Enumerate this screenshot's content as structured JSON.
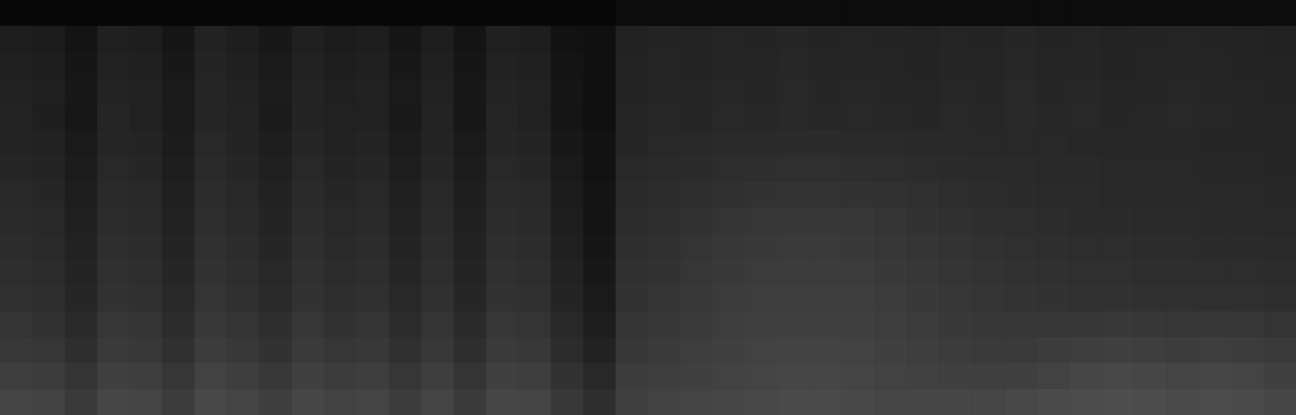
{
  "chart_data": {
    "type": "heatmap",
    "tick_labels": false,
    "cells": [
      [
        8,
        8,
        8,
        8,
        8,
        8,
        8,
        8,
        8,
        8,
        8,
        8,
        8,
        8,
        8,
        8,
        8,
        8,
        8,
        12,
        12,
        12,
        12,
        12,
        12,
        12,
        12,
        12,
        12,
        12,
        12,
        12,
        12,
        12,
        12,
        12,
        12,
        12,
        12,
        12
      ],
      [
        30,
        28,
        20,
        32,
        30,
        22,
        34,
        30,
        24,
        32,
        28,
        30,
        22,
        30,
        20,
        32,
        30,
        18,
        16,
        34,
        36,
        35,
        37,
        36,
        38,
        36,
        37,
        36,
        35,
        37,
        36,
        38,
        36,
        37,
        35,
        36,
        37,
        36,
        35,
        34
      ],
      [
        32,
        30,
        22,
        34,
        32,
        24,
        36,
        32,
        26,
        34,
        30,
        32,
        24,
        32,
        22,
        34,
        32,
        20,
        16,
        35,
        37,
        36,
        38,
        37,
        39,
        37,
        38,
        37,
        36,
        38,
        37,
        39,
        37,
        38,
        36,
        37,
        38,
        37,
        36,
        35
      ],
      [
        34,
        32,
        24,
        36,
        34,
        26,
        38,
        34,
        28,
        36,
        32,
        34,
        26,
        34,
        24,
        36,
        34,
        22,
        16,
        36,
        38,
        37,
        39,
        38,
        40,
        38,
        39,
        38,
        37,
        39,
        38,
        40,
        38,
        39,
        37,
        38,
        39,
        38,
        37,
        36
      ],
      [
        35,
        31,
        23,
        37,
        33,
        27,
        38,
        35,
        27,
        36,
        33,
        33,
        25,
        35,
        23,
        37,
        33,
        21,
        16,
        37,
        39,
        38,
        40,
        39,
        41,
        39,
        40,
        39,
        38,
        40,
        39,
        41,
        39,
        40,
        38,
        39,
        40,
        39,
        38,
        37
      ],
      [
        36,
        34,
        26,
        38,
        36,
        28,
        40,
        36,
        30,
        38,
        34,
        36,
        28,
        36,
        26,
        38,
        36,
        24,
        18,
        38,
        40,
        40,
        42,
        42,
        43,
        43,
        42,
        42,
        41,
        41,
        40,
        40,
        40,
        39,
        39,
        39,
        39,
        38,
        38,
        37
      ],
      [
        38,
        36,
        28,
        40,
        38,
        30,
        42,
        38,
        32,
        40,
        36,
        38,
        30,
        38,
        28,
        40,
        38,
        26,
        18,
        40,
        42,
        43,
        45,
        46,
        47,
        47,
        46,
        45,
        44,
        43,
        42,
        42,
        41,
        41,
        40,
        40,
        40,
        39,
        39,
        38
      ],
      [
        40,
        38,
        30,
        42,
        40,
        32,
        44,
        40,
        34,
        42,
        38,
        40,
        32,
        40,
        30,
        42,
        40,
        28,
        20,
        42,
        44,
        46,
        48,
        50,
        51,
        51,
        50,
        49,
        47,
        45,
        44,
        43,
        42,
        42,
        41,
        41,
        41,
        40,
        40,
        39
      ],
      [
        42,
        40,
        32,
        44,
        42,
        34,
        46,
        42,
        36,
        44,
        40,
        42,
        34,
        42,
        32,
        44,
        42,
        30,
        20,
        44,
        46,
        49,
        52,
        54,
        55,
        55,
        54,
        52,
        50,
        48,
        46,
        45,
        44,
        43,
        43,
        42,
        42,
        41,
        41,
        40
      ],
      [
        44,
        42,
        34,
        46,
        44,
        36,
        48,
        44,
        38,
        46,
        42,
        44,
        36,
        44,
        34,
        46,
        44,
        32,
        22,
        46,
        48,
        52,
        55,
        57,
        58,
        58,
        57,
        55,
        53,
        51,
        49,
        47,
        46,
        45,
        45,
        44,
        44,
        43,
        43,
        42
      ],
      [
        46,
        44,
        36,
        48,
        46,
        38,
        50,
        46,
        40,
        48,
        44,
        46,
        38,
        46,
        36,
        48,
        46,
        34,
        24,
        48,
        50,
        54,
        57,
        59,
        60,
        60,
        59,
        57,
        55,
        53,
        51,
        49,
        48,
        47,
        47,
        46,
        46,
        45,
        45,
        44
      ],
      [
        48,
        46,
        38,
        50,
        48,
        40,
        52,
        48,
        42,
        50,
        46,
        48,
        40,
        48,
        38,
        50,
        48,
        36,
        26,
        50,
        52,
        56,
        59,
        61,
        62,
        62,
        61,
        59,
        57,
        55,
        53,
        51,
        50,
        49,
        49,
        48,
        48,
        47,
        47,
        46
      ],
      [
        52,
        50,
        42,
        54,
        52,
        44,
        56,
        52,
        46,
        54,
        50,
        52,
        44,
        52,
        42,
        54,
        52,
        40,
        30,
        52,
        55,
        58,
        61,
        63,
        64,
        64,
        63,
        61,
        59,
        57,
        55,
        54,
        54,
        55,
        56,
        55,
        54,
        55,
        54,
        52
      ],
      [
        56,
        54,
        46,
        58,
        56,
        48,
        60,
        56,
        50,
        58,
        54,
        56,
        48,
        56,
        46,
        58,
        56,
        44,
        34,
        55,
        58,
        61,
        64,
        66,
        67,
        67,
        66,
        64,
        62,
        60,
        58,
        58,
        60,
        62,
        64,
        62,
        60,
        62,
        60,
        58
      ],
      [
        62,
        60,
        52,
        64,
        62,
        54,
        66,
        62,
        56,
        64,
        60,
        62,
        54,
        62,
        52,
        64,
        62,
        50,
        40,
        60,
        62,
        64,
        66,
        68,
        70,
        70,
        68,
        66,
        65,
        64,
        63,
        64,
        66,
        70,
        72,
        70,
        68,
        70,
        68,
        64
      ],
      [
        68,
        66,
        58,
        70,
        68,
        60,
        72,
        68,
        62,
        70,
        66,
        68,
        60,
        68,
        58,
        70,
        68,
        56,
        46,
        64,
        66,
        68,
        70,
        72,
        74,
        74,
        72,
        70,
        70,
        70,
        70,
        72,
        74,
        76,
        78,
        76,
        74,
        76,
        74,
        70
      ]
    ]
  }
}
